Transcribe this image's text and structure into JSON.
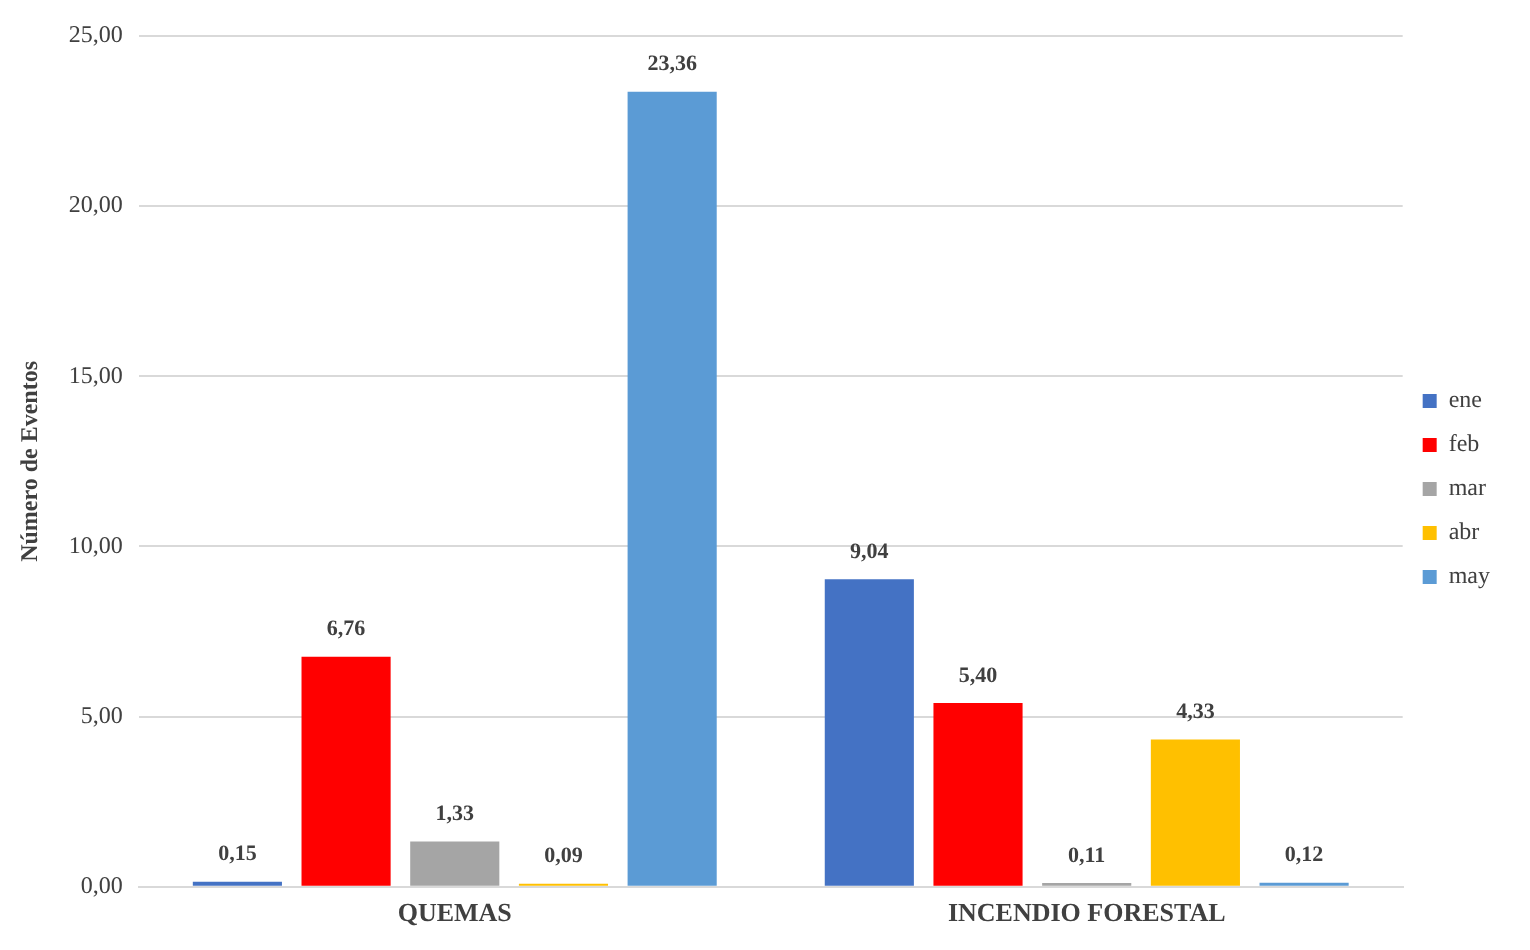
{
  "chart_data": {
    "type": "bar",
    "ylabel": "Número de Eventos",
    "categories": [
      "QUEMAS",
      "INCENDIO FORESTAL"
    ],
    "series": [
      {
        "name": "ene",
        "color": "#4472c4",
        "values": [
          0.15,
          9.04
        ],
        "value_labels": [
          "0,15",
          "9,04"
        ]
      },
      {
        "name": "feb",
        "color": "#ff0000",
        "values": [
          6.76,
          5.4
        ],
        "value_labels": [
          "6,76",
          "5,40"
        ]
      },
      {
        "name": "mar",
        "color": "#a5a5a5",
        "values": [
          1.33,
          0.11
        ],
        "value_labels": [
          "1,33",
          "0,11"
        ]
      },
      {
        "name": "abr",
        "color": "#ffc000",
        "values": [
          0.09,
          4.33
        ],
        "value_labels": [
          "0,09",
          "4,33"
        ]
      },
      {
        "name": "may",
        "color": "#5b9bd5",
        "values": [
          23.36,
          0.12
        ],
        "value_labels": [
          "23,36",
          "0,12"
        ]
      }
    ],
    "ylim": [
      0,
      25
    ],
    "yticks": [
      {
        "value": 0,
        "label": "0,00"
      },
      {
        "value": 5,
        "label": "5,00"
      },
      {
        "value": 10,
        "label": "10,00"
      },
      {
        "value": 15,
        "label": "15,00"
      },
      {
        "value": 20,
        "label": "20,00"
      },
      {
        "value": 25,
        "label": "25,00"
      }
    ],
    "grid": "y",
    "legend": "right"
  }
}
